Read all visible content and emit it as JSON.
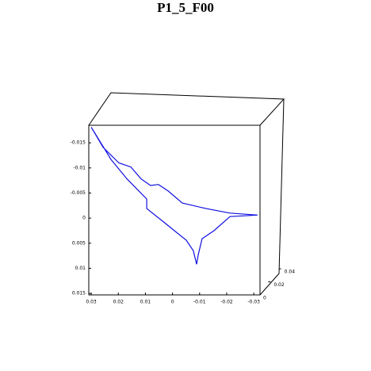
{
  "chart_data": {
    "type": "line",
    "title": "P1_5_F00",
    "color": "#1010e0",
    "xlim": [
      0.0309,
      -0.0323
    ],
    "xticks": [
      0.03,
      0.02,
      0.01,
      0,
      -0.01,
      -0.02,
      -0.03
    ],
    "ylim": [
      -0.0185,
      0.0153
    ],
    "yticks": [
      -0.015,
      -0.01,
      -0.005,
      0,
      0.005,
      0.01,
      0.015
    ],
    "zlim": [
      0,
      0.045
    ],
    "zticks": [
      0,
      0.02,
      0.04
    ],
    "x": [
      0.03,
      0.0256,
      0.0198,
      0.0154,
      0.0116,
      0.0081,
      0.0052,
      0.0016,
      -0.0036,
      -0.0124,
      -0.0212,
      -0.0314,
      -0.0212,
      -0.0153,
      -0.0109,
      -0.0095,
      -0.0089,
      -0.0077,
      -0.0051,
      -0.0007,
      0.0037,
      0.0095,
      0.0095,
      0.0168,
      0.0227,
      0.03
    ],
    "y": [
      -0.0181,
      -0.0141,
      -0.011,
      -0.0102,
      -0.0078,
      -0.0065,
      -0.0067,
      -0.0054,
      -0.003,
      -0.0019,
      -0.001,
      -0.0006,
      -0.0003,
      0.0025,
      0.0041,
      0.0073,
      0.0092,
      0.0065,
      0.0044,
      0.0025,
      0.0006,
      -0.0019,
      -0.0038,
      -0.0078,
      -0.0117,
      -0.0181
    ]
  }
}
